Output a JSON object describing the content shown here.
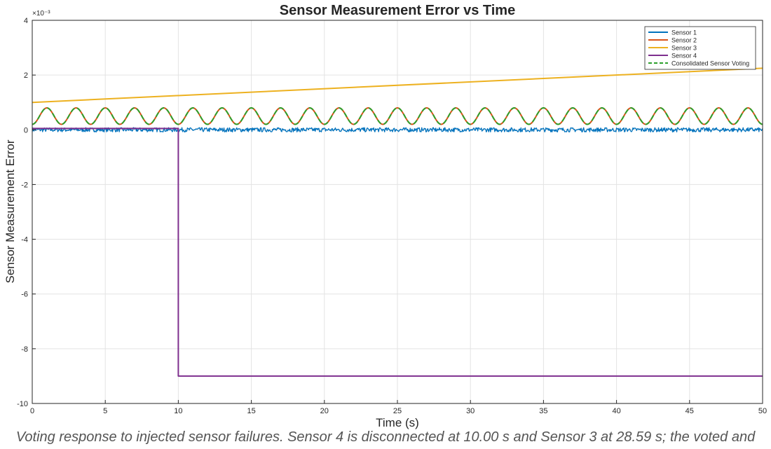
{
  "chart_data": {
    "type": "line",
    "title": "Sensor Measurement Error vs Time",
    "xlabel": "Time (s)",
    "ylabel": "Sensor Measurement Error",
    "y_exponent_label": "×10⁻³",
    "y_scale_factor": 0.001,
    "xlim": [
      0,
      50
    ],
    "ylim": [
      -10,
      4
    ],
    "xticks": [
      0,
      5,
      10,
      15,
      20,
      25,
      30,
      35,
      40,
      45,
      50
    ],
    "yticks": [
      -10,
      -8,
      -6,
      -4,
      -2,
      0,
      2,
      4
    ],
    "grid": true,
    "legend_position": "top-right",
    "series": [
      {
        "name": "Sensor 1",
        "color": "#0072BD",
        "style": "solid",
        "kind": "noise",
        "mean": 0.0,
        "noise_amplitude": 0.08,
        "x_range": [
          0,
          50
        ]
      },
      {
        "name": "Sensor 2",
        "color": "#D95319",
        "style": "solid",
        "kind": "sine",
        "offset": 0.5,
        "amplitude": 0.3,
        "period": 2.0,
        "x_range": [
          0,
          50
        ]
      },
      {
        "name": "Sensor 3",
        "color": "#EDB120",
        "style": "solid",
        "kind": "linear",
        "points": [
          [
            0,
            1.0
          ],
          [
            50,
            2.25
          ]
        ]
      },
      {
        "name": "Sensor 4",
        "color": "#7E2F8E",
        "style": "solid",
        "kind": "step",
        "points": [
          [
            0,
            0.05
          ],
          [
            10,
            0.05
          ],
          [
            10,
            -9.0
          ],
          [
            50,
            -9.0
          ]
        ]
      },
      {
        "name": "Consolidated Sensor Voting",
        "color": "#2CA02C",
        "style": "dashed",
        "kind": "sine",
        "offset": 0.5,
        "amplitude": 0.3,
        "period": 2.0,
        "x_range": [
          0,
          50
        ]
      }
    ]
  },
  "caption": "Voting response to injected sensor failures. Sensor 4 is disconnected at 10.00 s and Sensor 3 at 28.59 s; the voted and"
}
